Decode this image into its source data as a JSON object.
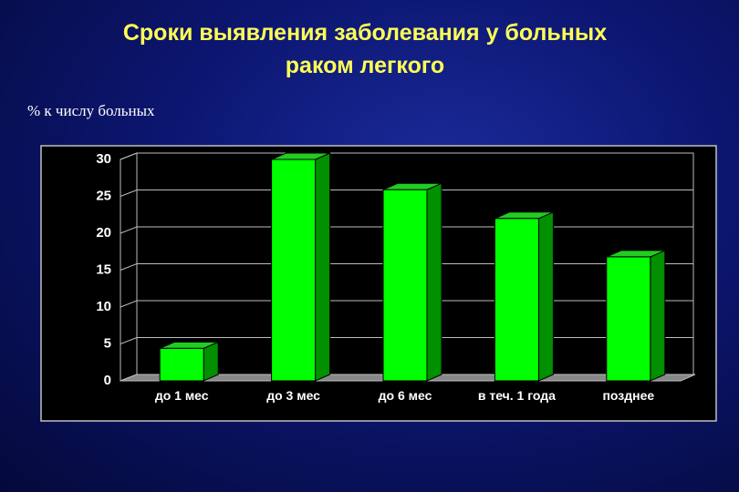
{
  "chart_data": {
    "type": "bar3d",
    "title": "Сроки выявления заболевания у больных раком легкого",
    "y_label": "% к числу больных",
    "categories": [
      "до 1 мес",
      "до 3 мес",
      "до 6 мес",
      "в теч. 1 года",
      "позднее"
    ],
    "values": [
      4.4,
      30,
      25.9,
      22,
      16.8
    ],
    "color": "#00ff00",
    "ylim": [
      0,
      30
    ],
    "yticks": [
      0,
      5,
      10,
      15,
      20,
      25,
      30
    ],
    "grid": true
  }
}
